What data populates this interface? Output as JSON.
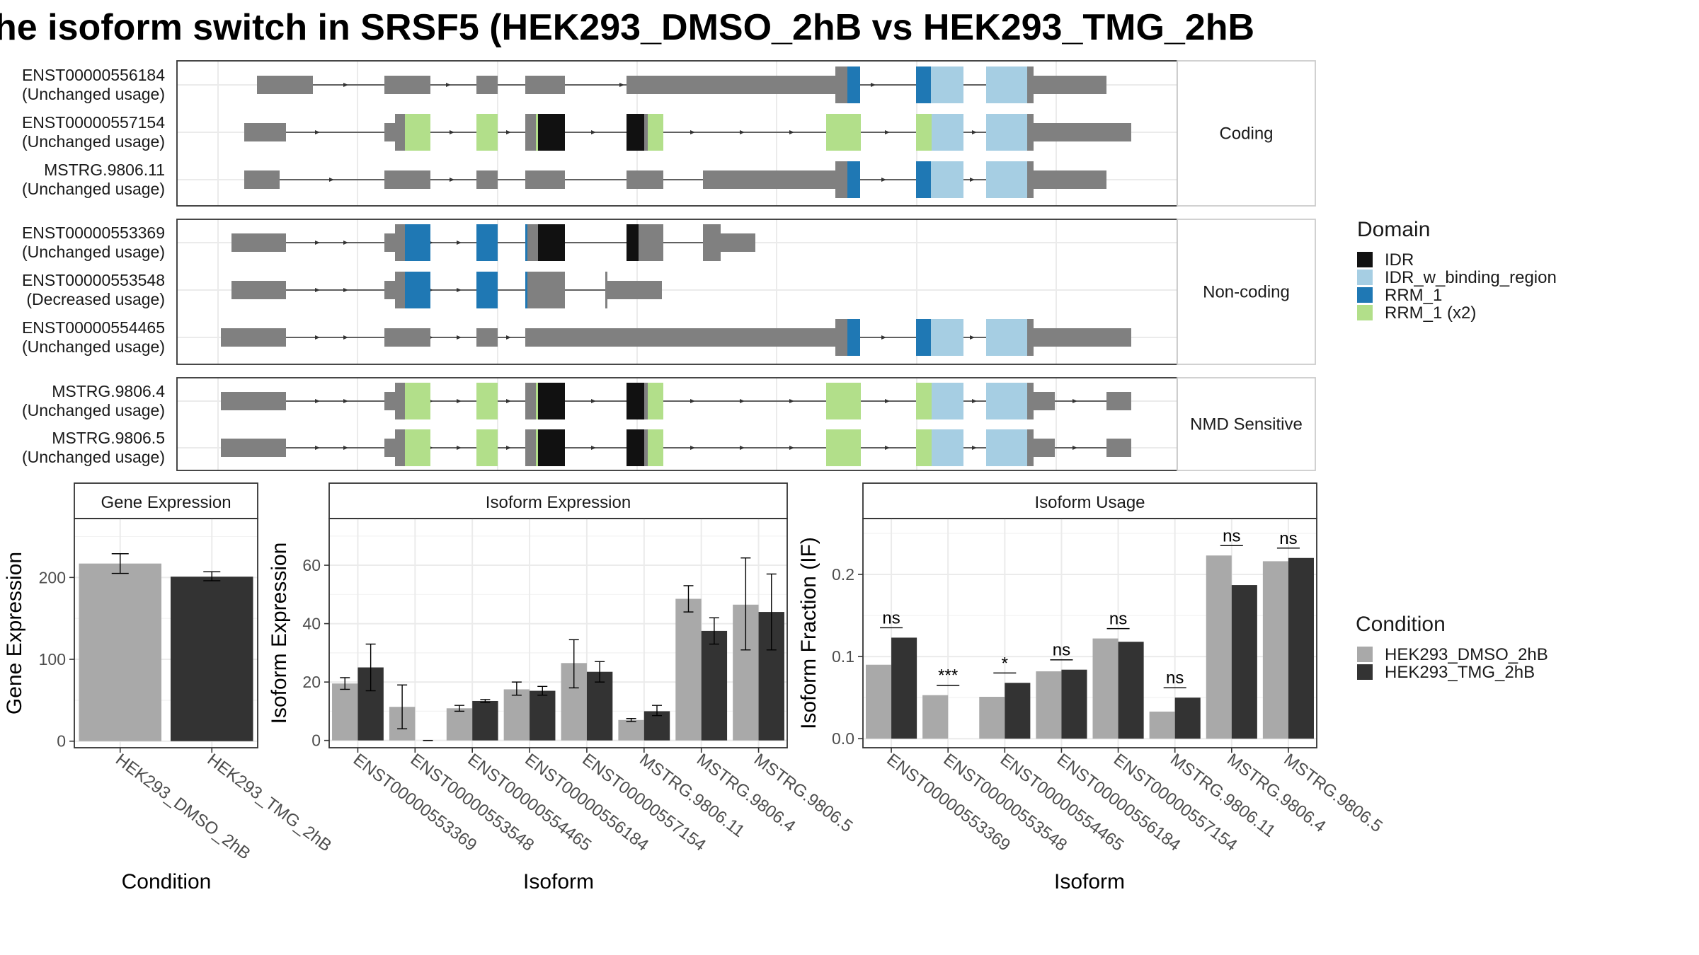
{
  "title": "he isoform switch in SRSF5 (HEK293_DMSO_2hB vs HEK293_TMG_2hB",
  "colors": {
    "exon": "#808080",
    "IDR": "#111111",
    "IDR_w_binding_region": "#a6cee3",
    "RRM_1": "#1f78b4",
    "RRM_1_x2": "#b2df8a",
    "dmso": "#a9a9a9",
    "tmg": "#333333"
  },
  "structure": {
    "groups": [
      {
        "label": "Coding",
        "isoforms": [
          {
            "id": "ENST00000556184",
            "usage": "(Unchanged usage)"
          },
          {
            "id": "ENST00000557154",
            "usage": "(Unchanged usage)"
          },
          {
            "id": "MSTRG.9806.11",
            "usage": "(Unchanged usage)"
          }
        ]
      },
      {
        "label": "Non-coding",
        "isoforms": [
          {
            "id": "ENST00000553369",
            "usage": "(Unchanged usage)"
          },
          {
            "id": "ENST00000553548",
            "usage": "(Decreased usage)"
          },
          {
            "id": "ENST00000554465",
            "usage": "(Unchanged usage)"
          }
        ]
      },
      {
        "label": "NMD Sensitive",
        "isoforms": [
          {
            "id": "MSTRG.9806.4",
            "usage": "(Unchanged usage)"
          },
          {
            "id": "MSTRG.9806.5",
            "usage": "(Unchanged usage)"
          }
        ]
      }
    ]
  },
  "domain_legend": {
    "title": "Domain",
    "items": [
      "IDR",
      "IDR_w_binding_region",
      "RRM_1",
      "RRM_1 (x2)"
    ]
  },
  "condition_legend": {
    "title": "Condition",
    "items": [
      "HEK293_DMSO_2hB",
      "HEK293_TMG_2hB"
    ]
  },
  "chart_data": [
    {
      "type": "bar",
      "title": "Gene Expression",
      "xlabel": "Condition",
      "ylabel": "Gene Expression",
      "categories": [
        "HEK293_DMSO_2hB",
        "HEK293_TMG_2hB"
      ],
      "values": [
        217,
        201
      ],
      "errors": [
        [
          205,
          229
        ],
        [
          196,
          207
        ]
      ],
      "ylim": [
        -8,
        272
      ],
      "yticks": [
        0,
        100,
        200
      ]
    },
    {
      "type": "bar",
      "title": "Isoform Expression",
      "xlabel": "Isoform",
      "ylabel": "Isoform Expression",
      "categories": [
        "ENST00000553369",
        "ENST00000553548",
        "ENST00000554465",
        "ENST00000556184",
        "ENST00000557154",
        "MSTRG.9806.11",
        "MSTRG.9806.4",
        "MSTRG.9806.5"
      ],
      "series": [
        {
          "name": "HEK293_DMSO_2hB",
          "values": [
            19.5,
            11.5,
            11,
            17.5,
            26.5,
            7,
            48.5,
            46.5
          ],
          "errors": [
            [
              17.5,
              21.5
            ],
            [
              4,
              19
            ],
            [
              10,
              12
            ],
            [
              15.5,
              20
            ],
            [
              18,
              34.5
            ],
            [
              6.5,
              7.5
            ],
            [
              44,
              53
            ],
            [
              31,
              62.5
            ]
          ]
        },
        {
          "name": "HEK293_TMG_2hB",
          "values": [
            25,
            0,
            13.5,
            17,
            23.5,
            10,
            37.5,
            44
          ],
          "errors": [
            [
              17,
              33
            ],
            [
              0,
              0
            ],
            [
              13,
              14
            ],
            [
              15.5,
              18.5
            ],
            [
              20,
              27
            ],
            [
              8.5,
              12
            ],
            [
              33,
              42
            ],
            [
              31,
              57
            ]
          ]
        }
      ],
      "ylim": [
        -2.5,
        76
      ],
      "yticks": [
        0,
        20,
        40,
        60
      ]
    },
    {
      "type": "bar",
      "title": "Isoform Usage",
      "xlabel": "Isoform",
      "ylabel": "Isoform Fraction (IF)",
      "categories": [
        "ENST00000553369",
        "ENST00000553548",
        "ENST00000554465",
        "ENST00000556184",
        "ENST00000557154",
        "MSTRG.9806.11",
        "MSTRG.9806.4",
        "MSTRG.9806.5"
      ],
      "series": [
        {
          "name": "HEK293_DMSO_2hB",
          "values": [
            0.09,
            0.053,
            0.051,
            0.082,
            0.122,
            0.033,
            0.223,
            0.216
          ]
        },
        {
          "name": "HEK293_TMG_2hB",
          "values": [
            0.123,
            0.0,
            0.068,
            0.084,
            0.118,
            0.05,
            0.187,
            0.22
          ]
        }
      ],
      "significance": [
        "ns",
        "***",
        "*",
        "ns",
        "ns",
        "ns",
        "ns",
        "ns"
      ],
      "ylim": [
        -0.011,
        0.268
      ],
      "yticks": [
        0.0,
        0.1,
        0.2
      ],
      "ytick_labels": [
        "0.0",
        "0.1",
        "0.2"
      ]
    }
  ]
}
